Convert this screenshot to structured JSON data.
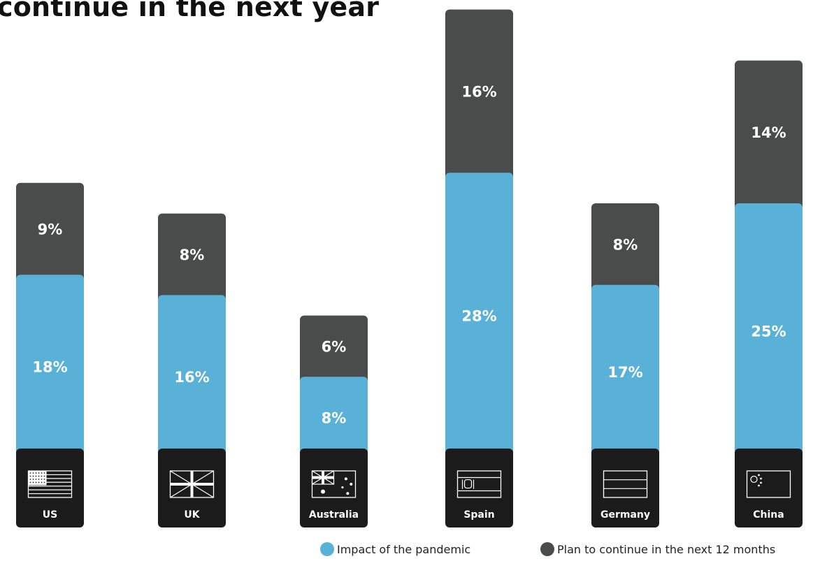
{
  "chart_data": {
    "type": "bar",
    "stacked": true,
    "title": "continue in the next year",
    "categories": [
      "US",
      "UK",
      "Australia",
      "Spain",
      "Germany",
      "China"
    ],
    "series": [
      {
        "name": "Impact of the pandemic",
        "values": [
          18,
          16,
          8,
          28,
          17,
          25
        ],
        "labels": [
          "18%",
          "16%",
          "8%",
          "28%",
          "17%",
          "25%"
        ],
        "color": "#5ab1d8"
      },
      {
        "name": "Plan to continue in the next 12 months",
        "values": [
          9,
          8,
          6,
          16,
          8,
          14
        ],
        "labels": [
          "9%",
          "8%",
          "6%",
          "16%",
          "8%",
          "14%"
        ],
        "color": "#4a4b4b"
      }
    ],
    "flags": [
      "us-flag-icon",
      "uk-flag-icon",
      "australia-flag-icon",
      "spain-flag-icon",
      "germany-flag-icon",
      "china-flag-icon"
    ],
    "legend": "bottom-right",
    "grid": false,
    "axes_visible": false
  },
  "colors": {
    "label_box": "#1b1b1b",
    "text_on_bar": "#ffffff"
  }
}
